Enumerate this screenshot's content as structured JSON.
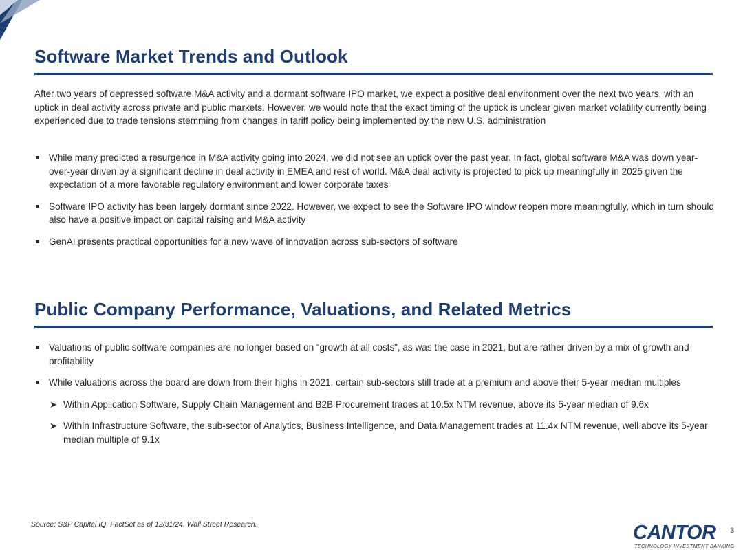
{
  "section1": {
    "title": "Software Market Trends and Outlook",
    "intro": "After two years of depressed software M&A activity and a dormant software IPO market, we expect a positive deal environment over the next two years, with an uptick in deal activity across private and public markets. However, we would note that the exact timing of the uptick is unclear given market volatility currently being experienced due to trade tensions stemming from changes in tariff policy being implemented by the new U.S. administration",
    "bullets": [
      "While many predicted a resurgence in M&A activity going into 2024, we did not see an uptick over the past year. In fact, global software M&A was down year-over-year driven by a significant decline in deal activity in EMEA and rest of world. M&A deal activity is projected to pick up meaningfully in 2025 given the expectation of a more favorable regulatory environment and lower corporate taxes",
      "Software IPO activity has been largely dormant since 2022. However, we expect to see the Software IPO window reopen more meaningfully, which in turn should also have a positive impact on capital raising and M&A activity",
      "GenAI presents practical opportunities for a new wave of innovation across sub-sectors of software"
    ]
  },
  "section2": {
    "title": "Public Company Performance, Valuations, and Related Metrics",
    "bullets": [
      "Valuations of public software companies are no longer based on “growth at all costs”, as was the case in 2021, but are rather driven by a mix of growth and profitability",
      "While valuations across the board are down from their highs in 2021, certain sub-sectors still trade at a premium and above their 5-year median multiples"
    ],
    "sub_bullets": [
      "Within Application Software, Supply Chain Management and B2B Procurement trades at 10.5x NTM revenue, above its 5-year median of 9.6x",
      "Within Infrastructure Software, the sub-sector of Analytics, Business Intelligence, and Data Management trades at 11.4x NTM revenue, well above its 5-year median multiple of 9.1x"
    ]
  },
  "footer": {
    "source": "Source: S&P Capital IQ, FactSet as of 12/31/24. Wall Street Research.",
    "logo_word": "CANTOR",
    "logo_sub": "TECHNOLOGY INVESTMENT BANKING",
    "page_number": "3"
  },
  "colors": {
    "accent": "#1f3f73",
    "corner_light": "#8fa3bf"
  }
}
